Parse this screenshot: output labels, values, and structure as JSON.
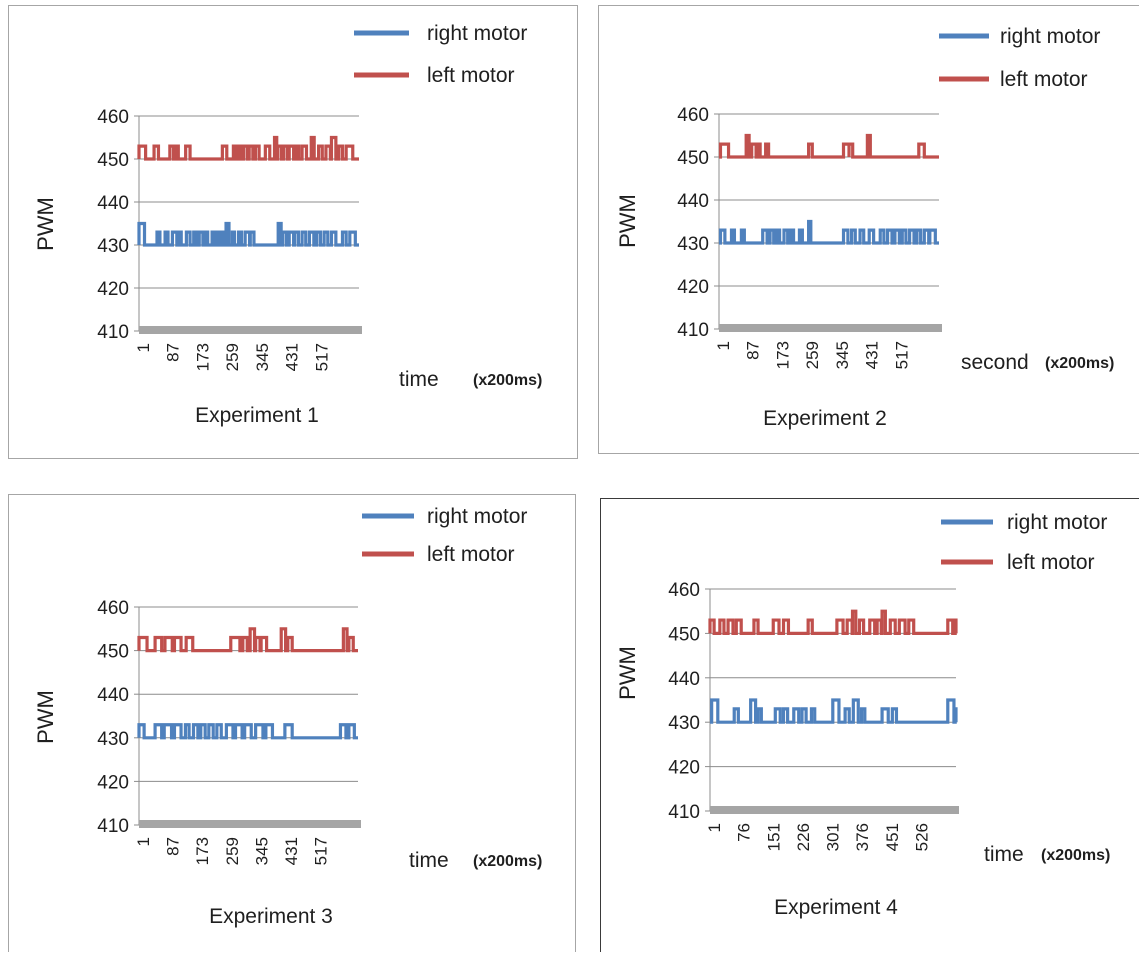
{
  "chart_data": [
    {
      "type": "line",
      "title": "Experiment 1",
      "xlabel": "time",
      "xunit": "(x200ms)",
      "ylabel": "PWM",
      "ylim": [
        410,
        460
      ],
      "yticks": [
        410,
        420,
        430,
        440,
        450,
        460
      ],
      "xtick_labels": [
        "1",
        "87",
        "173",
        "259",
        "345",
        "431",
        "517"
      ],
      "x_max": 600,
      "grid": true,
      "legend_position": "top-right",
      "series": [
        {
          "name": "right motor",
          "color": "#4f81bd",
          "baseline": 430,
          "spike_value": 433,
          "spikes": [
            [
              1,
              15,
              435
            ],
            [
              50,
              8
            ],
            [
              72,
              8
            ],
            [
              92,
              12
            ],
            [
              108,
              8
            ],
            [
              130,
              10
            ],
            [
              150,
              8
            ],
            [
              165,
              10
            ],
            [
              180,
              8
            ],
            [
              200,
              8
            ],
            [
              213,
              8
            ],
            [
              228,
              6
            ],
            [
              238,
              8,
              435
            ],
            [
              255,
              6
            ],
            [
              272,
              8
            ],
            [
              290,
              12
            ],
            [
              304,
              10
            ],
            [
              380,
              8,
              435
            ],
            [
              392,
              10
            ],
            [
              410,
              12
            ],
            [
              425,
              10
            ],
            [
              445,
              10
            ],
            [
              465,
              12
            ],
            [
              485,
              10
            ],
            [
              505,
              10
            ],
            [
              525,
              12
            ],
            [
              555,
              10
            ],
            [
              575,
              15
            ]
          ]
        },
        {
          "name": "left motor",
          "color": "#c0504d",
          "baseline": 450,
          "spike_value": 453,
          "spikes": [
            [
              1,
              18
            ],
            [
              42,
              12
            ],
            [
              85,
              10
            ],
            [
              100,
              8
            ],
            [
              128,
              12
            ],
            [
              228,
              12,
              453
            ],
            [
              258,
              6
            ],
            [
              272,
              8
            ],
            [
              286,
              10
            ],
            [
              301,
              10
            ],
            [
              318,
              10
            ],
            [
              345,
              12
            ],
            [
              370,
              6,
              455
            ],
            [
              378,
              10
            ],
            [
              395,
              10
            ],
            [
              410,
              12
            ],
            [
              428,
              8
            ],
            [
              445,
              12
            ],
            [
              470,
              8,
              455
            ],
            [
              490,
              10
            ],
            [
              510,
              12
            ],
            [
              525,
              12,
              455
            ],
            [
              545,
              10
            ],
            [
              565,
              18
            ]
          ]
        }
      ]
    },
    {
      "type": "line",
      "title": "Experiment 2",
      "xlabel": "second",
      "xunit": "(x200ms)",
      "ylabel": "PWM",
      "ylim": [
        410,
        460
      ],
      "yticks": [
        410,
        420,
        430,
        440,
        450,
        460
      ],
      "xtick_labels": [
        "1",
        "87",
        "173",
        "259",
        "345",
        "431",
        "517"
      ],
      "x_max": 600,
      "grid": true,
      "legend_position": "top-right",
      "series": [
        {
          "name": "right motor",
          "color": "#4f81bd",
          "baseline": 430,
          "spike_value": 433,
          "spikes": [
            [
              5,
              12
            ],
            [
              35,
              8
            ],
            [
              62,
              8
            ],
            [
              120,
              12
            ],
            [
              140,
              10
            ],
            [
              158,
              8
            ],
            [
              178,
              10
            ],
            [
              196,
              8
            ],
            [
              220,
              8
            ],
            [
              245,
              6,
              435
            ],
            [
              340,
              12
            ],
            [
              362,
              10
            ],
            [
              385,
              10
            ],
            [
              410,
              12
            ],
            [
              440,
              10
            ],
            [
              460,
              12
            ],
            [
              480,
              12
            ],
            [
              500,
              10
            ],
            [
              520,
              12
            ],
            [
              540,
              10
            ],
            [
              560,
              12
            ],
            [
              575,
              15
            ]
          ]
        },
        {
          "name": "left motor",
          "color": "#c0504d",
          "baseline": 450,
          "spike_value": 453,
          "spikes": [
            [
              5,
              22
            ],
            [
              75,
              8,
              455
            ],
            [
              90,
              12
            ],
            [
              105,
              8
            ],
            [
              128,
              8
            ],
            [
              245,
              10
            ],
            [
              340,
              15
            ],
            [
              355,
              10
            ],
            [
              405,
              8,
              455
            ],
            [
              545,
              15
            ]
          ]
        }
      ]
    },
    {
      "type": "line",
      "title": "Experiment 3",
      "xlabel": "time",
      "xunit": "(x200ms)",
      "ylabel": "PWM",
      "ylim": [
        410,
        460
      ],
      "yticks": [
        410,
        420,
        430,
        440,
        450,
        460
      ],
      "xtick_labels": [
        "1",
        "87",
        "173",
        "259",
        "345",
        "431",
        "517"
      ],
      "x_max": 600,
      "grid": true,
      "legend_position": "top-right",
      "series": [
        {
          "name": "right motor",
          "color": "#4f81bd",
          "baseline": 430,
          "spike_value": 433,
          "spikes": [
            [
              1,
              14
            ],
            [
              45,
              18
            ],
            [
              70,
              20
            ],
            [
              98,
              18
            ],
            [
              128,
              10
            ],
            [
              150,
              12
            ],
            [
              170,
              12
            ],
            [
              192,
              12
            ],
            [
              214,
              12
            ],
            [
              240,
              18
            ],
            [
              265,
              18
            ],
            [
              290,
              18
            ],
            [
              320,
              20
            ],
            [
              348,
              18
            ],
            [
              400,
              20
            ],
            [
              552,
              15
            ],
            [
              575,
              15
            ]
          ]
        },
        {
          "name": "left motor",
          "color": "#c0504d",
          "baseline": 450,
          "spike_value": 453,
          "spikes": [
            [
              1,
              22
            ],
            [
              45,
              18
            ],
            [
              72,
              20
            ],
            [
              98,
              18
            ],
            [
              130,
              18
            ],
            [
              252,
              25
            ],
            [
              285,
              12
            ],
            [
              305,
              12,
              455
            ],
            [
              320,
              12
            ],
            [
              335,
              15
            ],
            [
              390,
              12,
              455
            ],
            [
              408,
              12
            ],
            [
              560,
              10,
              455
            ],
            [
              575,
              12
            ]
          ]
        }
      ]
    },
    {
      "type": "line",
      "title": "Experiment 4",
      "xlabel": "time",
      "xunit": "(x200ms)",
      "ylabel": "PWM",
      "ylim": [
        410,
        460
      ],
      "yticks": [
        410,
        420,
        430,
        440,
        450,
        460
      ],
      "xtick_labels": [
        "1",
        "76",
        "151",
        "226",
        "301",
        "376",
        "451",
        "526"
      ],
      "x_max": 600,
      "grid": true,
      "legend_position": "top-right",
      "series": [
        {
          "name": "right motor",
          "color": "#4f81bd",
          "baseline": 430,
          "spike_value": 433,
          "spikes": [
            [
              5,
              15,
              435
            ],
            [
              60,
              10
            ],
            [
              100,
              12,
              435
            ],
            [
              118,
              8
            ],
            [
              160,
              12
            ],
            [
              180,
              10
            ],
            [
              205,
              12
            ],
            [
              225,
              10
            ],
            [
              248,
              8
            ],
            [
              300,
              15,
              435
            ],
            [
              330,
              10
            ],
            [
              350,
              12,
              435
            ],
            [
              370,
              8
            ],
            [
              420,
              15
            ],
            [
              445,
              10
            ],
            [
              580,
              15,
              435
            ],
            [
              598,
              10
            ]
          ]
        },
        {
          "name": "left motor",
          "color": "#c0504d",
          "baseline": 450,
          "spike_value": 453,
          "spikes": [
            [
              1,
              10
            ],
            [
              25,
              10
            ],
            [
              45,
              12
            ],
            [
              65,
              12
            ],
            [
              108,
              10
            ],
            [
              155,
              14
            ],
            [
              180,
              12
            ],
            [
              240,
              10
            ],
            [
              310,
              15
            ],
            [
              335,
              12
            ],
            [
              348,
              8,
              455
            ],
            [
              365,
              10
            ],
            [
              390,
              12
            ],
            [
              408,
              10
            ],
            [
              420,
              8,
              455
            ],
            [
              440,
              12
            ],
            [
              462,
              14
            ],
            [
              485,
              12
            ],
            [
              580,
              12
            ],
            [
              598,
              10
            ]
          ]
        }
      ]
    }
  ]
}
